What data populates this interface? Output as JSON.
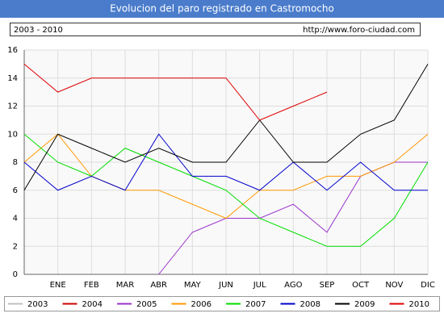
{
  "chart_data": {
    "type": "line",
    "title": "Evolucion del paro registrado en Castromocho",
    "subtitle": "2003 - 2010",
    "source": "http://www.foro-ciudad.com",
    "categories": [
      null,
      "ENE",
      "FEB",
      "MAR",
      "ABR",
      "MAY",
      "JUN",
      "JUL",
      "AGO",
      "SEP",
      "OCT",
      "NOV",
      "DIC"
    ],
    "ylim": [
      0,
      16
    ],
    "yticks": [
      0,
      2,
      4,
      6,
      8,
      10,
      12,
      14,
      16
    ],
    "grid": true,
    "series": [
      {
        "name": "2003",
        "color": "#c0c0c0",
        "values": [
          null,
          null,
          null,
          null,
          null,
          null,
          null,
          null,
          null,
          null,
          null,
          null,
          null
        ]
      },
      {
        "name": "2004",
        "color": "#cc0000",
        "values": [
          null,
          null,
          null,
          null,
          null,
          null,
          null,
          null,
          null,
          null,
          null,
          null,
          null
        ]
      },
      {
        "name": "2005",
        "color": "#9933cc",
        "values": [
          null,
          null,
          null,
          null,
          0,
          3,
          4,
          4,
          5,
          3,
          7,
          8,
          8
        ]
      },
      {
        "name": "2006",
        "color": "#ff9900",
        "values": [
          8,
          10,
          7,
          6,
          6,
          5,
          4,
          6,
          6,
          7,
          7,
          8,
          10
        ]
      },
      {
        "name": "2007",
        "color": "#00dd00",
        "values": [
          10,
          8,
          7,
          9,
          8,
          7,
          6,
          4,
          3,
          2,
          2,
          4,
          8
        ]
      },
      {
        "name": "2008",
        "color": "#0000cc",
        "values": [
          8,
          6,
          7,
          6,
          10,
          7,
          7,
          6,
          8,
          6,
          8,
          6,
          6
        ]
      },
      {
        "name": "2009",
        "color": "#000000",
        "values": [
          6,
          10,
          9,
          8,
          9,
          8,
          8,
          11,
          8,
          8,
          10,
          11,
          15
        ]
      },
      {
        "name": "2010",
        "color": "#dd0000",
        "values": [
          15,
          13,
          14,
          14,
          14,
          14,
          14,
          11,
          12,
          13,
          null,
          null,
          null
        ]
      }
    ]
  }
}
